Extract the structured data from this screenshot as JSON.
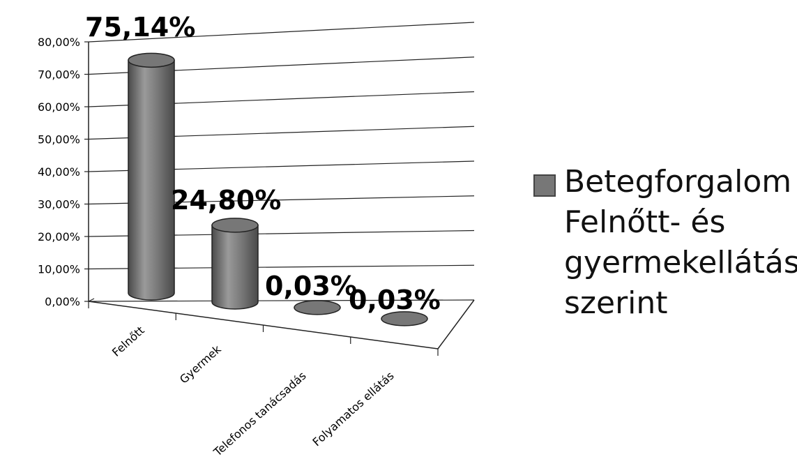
{
  "chart_data": {
    "type": "bar",
    "style": "3d-cylinder",
    "categories": [
      "Felnőtt",
      "Gyermek",
      "Telefonos tanácsadás",
      "Folyamatos ellátás"
    ],
    "series": [
      {
        "name": "Betegforgalom - Felnőtt- és gyermekellátás szerint",
        "values": [
          75.14,
          24.8,
          0.03,
          0.03
        ],
        "data_labels": [
          "75,14%",
          "24,80%",
          "0,03%",
          "0,03%"
        ]
      }
    ],
    "ylim": [
      0,
      80
    ],
    "yticks": [
      "0,00%",
      "10,00%",
      "20,00%",
      "30,00%",
      "40,00%",
      "50,00%",
      "60,00%",
      "70,00%",
      "80,00%"
    ],
    "grid": true,
    "legend_position": "right",
    "bar_color": "#777777",
    "bar_dark": "#4a4a4a",
    "bar_light": "#9a9a9a"
  },
  "legend": {
    "label": "Betegforgalom - Felnőtt- és gyermekellátás szerint"
  }
}
